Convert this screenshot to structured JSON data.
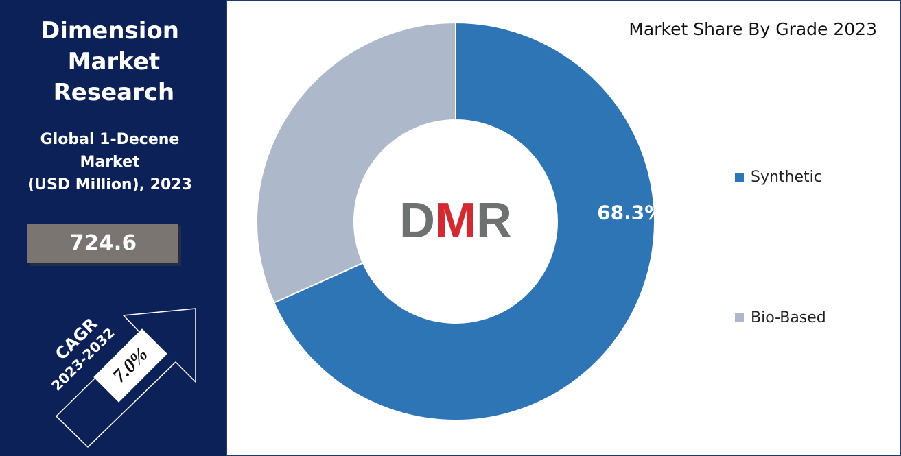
{
  "panel": {
    "brand": "Dimension Market Research",
    "title_lines": [
      "Global 1-Decene",
      "Market",
      "(USD Million), 2023"
    ],
    "market_size": 724.6,
    "cagr_label": "CAGR",
    "cagr_period": "2023-2032",
    "cagr": "7.0%"
  },
  "chart_data": {
    "type": "pie",
    "donut": true,
    "title": "Market Share By Grade 2023",
    "logo": "DMR",
    "categories": [
      "Synthetic",
      "Bio-Based"
    ],
    "values": [
      68.3,
      31.7
    ],
    "value_labels": [
      "68.3%",
      null
    ],
    "colors": [
      "#2e75b6",
      "#adb9ca"
    ],
    "legend": "right"
  }
}
